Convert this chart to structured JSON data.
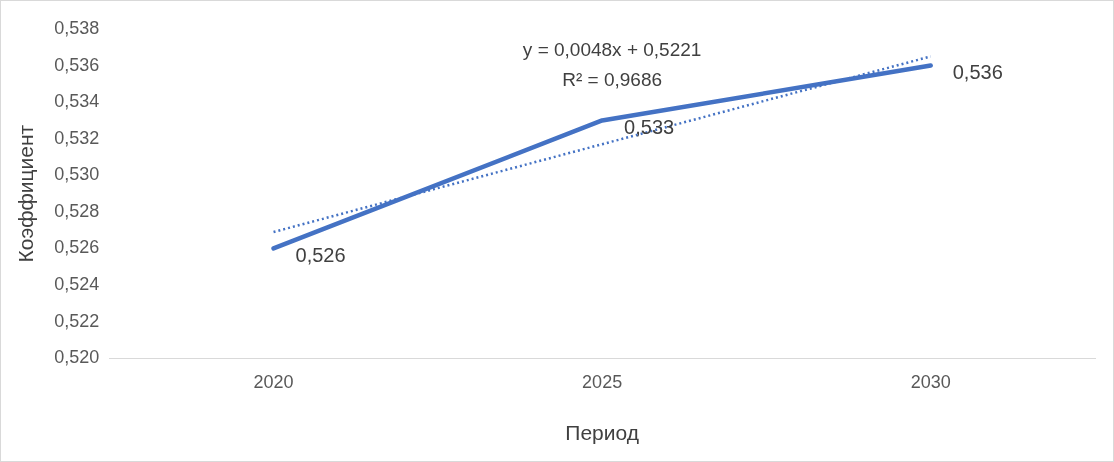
{
  "chart_data": {
    "type": "line",
    "xlabel": "Период",
    "ylabel": "Коэффициент",
    "categories": [
      "2020",
      "2025",
      "2030"
    ],
    "series": [
      {
        "color": "#4472c4",
        "values": [
          0.526,
          0.533,
          0.536
        ],
        "value_labels": [
          "0,526",
          "0,533",
          "0,536"
        ],
        "line_style": "solid"
      },
      {
        "type": "line",
        "color": "#4472c4",
        "values": [
          0.5269,
          0.5317,
          0.5365
        ],
        "line_style": "dotted"
      }
    ],
    "ylim": [
      0.52,
      0.538
    ],
    "yticks": [
      {
        "value": 0.52,
        "label": "0,520"
      },
      {
        "value": 0.522,
        "label": "0,522"
      },
      {
        "value": 0.524,
        "label": "0,524"
      },
      {
        "value": 0.526,
        "label": "0,526"
      },
      {
        "value": 0.528,
        "label": "0,528"
      },
      {
        "value": 0.53,
        "label": "0,530"
      },
      {
        "value": 0.532,
        "label": "0,532"
      },
      {
        "value": 0.534,
        "label": "0,534"
      },
      {
        "value": 0.536,
        "label": "0,536"
      },
      {
        "value": 0.538,
        "label": "0,538"
      }
    ],
    "annotations": [
      "y = 0,0048x + 0,5221",
      "R² = 0,9686"
    ],
    "grid": false,
    "legend": false,
    "marker": "none"
  }
}
